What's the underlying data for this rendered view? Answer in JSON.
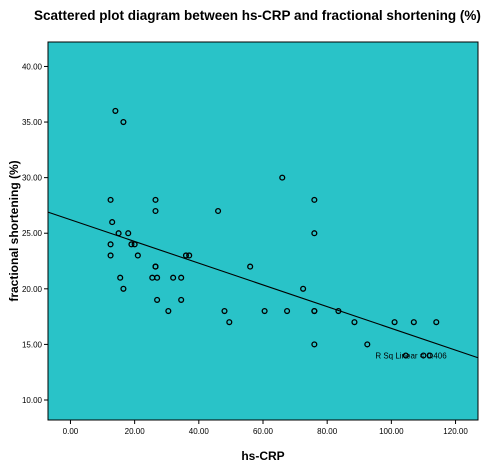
{
  "chart_data": {
    "type": "scatter",
    "title": "Scattered plot diagram between hs-CRP and fractional shortening (%)",
    "xlabel": "hs-CRP",
    "ylabel": "fractional shortening (%)",
    "xlim": [
      -7,
      127
    ],
    "ylim": [
      8.2,
      42.2
    ],
    "x_ticks": [
      0,
      20,
      40,
      60,
      80,
      100,
      120
    ],
    "x_tick_labels": [
      "0.00",
      "20.00",
      "40.00",
      "60.00",
      "80.00",
      "100.00",
      "120.00"
    ],
    "y_ticks": [
      10,
      15,
      20,
      25,
      30,
      35,
      40
    ],
    "y_tick_labels": [
      "10.00",
      "15.00",
      "20.00",
      "25.00",
      "30.00",
      "35.00",
      "40.00"
    ],
    "grid": false,
    "background_color": "#29C3C8",
    "marker_color": "#000000",
    "points": [
      {
        "x": 14,
        "y": 36
      },
      {
        "x": 16.5,
        "y": 35
      },
      {
        "x": 12.5,
        "y": 28
      },
      {
        "x": 13,
        "y": 26
      },
      {
        "x": 15,
        "y": 25
      },
      {
        "x": 12.5,
        "y": 24
      },
      {
        "x": 12.5,
        "y": 23
      },
      {
        "x": 15.5,
        "y": 21
      },
      {
        "x": 16.5,
        "y": 20
      },
      {
        "x": 18,
        "y": 25
      },
      {
        "x": 19,
        "y": 24
      },
      {
        "x": 20,
        "y": 24
      },
      {
        "x": 21,
        "y": 23
      },
      {
        "x": 26.5,
        "y": 28
      },
      {
        "x": 26.5,
        "y": 27
      },
      {
        "x": 26.5,
        "y": 22
      },
      {
        "x": 26.5,
        "y": 22
      },
      {
        "x": 25.5,
        "y": 21
      },
      {
        "x": 27,
        "y": 21
      },
      {
        "x": 27,
        "y": 19
      },
      {
        "x": 30.5,
        "y": 18
      },
      {
        "x": 32,
        "y": 21
      },
      {
        "x": 34.5,
        "y": 21
      },
      {
        "x": 34.5,
        "y": 19
      },
      {
        "x": 36,
        "y": 23
      },
      {
        "x": 37,
        "y": 23
      },
      {
        "x": 46,
        "y": 27
      },
      {
        "x": 48,
        "y": 18
      },
      {
        "x": 49.5,
        "y": 17
      },
      {
        "x": 56,
        "y": 22
      },
      {
        "x": 60.5,
        "y": 18
      },
      {
        "x": 66,
        "y": 30
      },
      {
        "x": 67.5,
        "y": 18
      },
      {
        "x": 72.5,
        "y": 20
      },
      {
        "x": 76,
        "y": 28
      },
      {
        "x": 76,
        "y": 25
      },
      {
        "x": 76,
        "y": 18
      },
      {
        "x": 76,
        "y": 18
      },
      {
        "x": 76,
        "y": 15
      },
      {
        "x": 83.5,
        "y": 18
      },
      {
        "x": 88.5,
        "y": 17
      },
      {
        "x": 92.5,
        "y": 15
      },
      {
        "x": 101,
        "y": 17
      },
      {
        "x": 104.5,
        "y": 14
      },
      {
        "x": 107,
        "y": 17
      },
      {
        "x": 110,
        "y": 14
      },
      {
        "x": 112,
        "y": 14
      },
      {
        "x": 114,
        "y": 17
      }
    ],
    "fit_line": {
      "type": "linear",
      "x0": -7,
      "y0": 26.9,
      "x1": 127,
      "y1": 13.8
    },
    "annotations": [
      {
        "text": "R Sq Linear = 0.406",
        "x": 95,
        "y": 14
      }
    ]
  }
}
